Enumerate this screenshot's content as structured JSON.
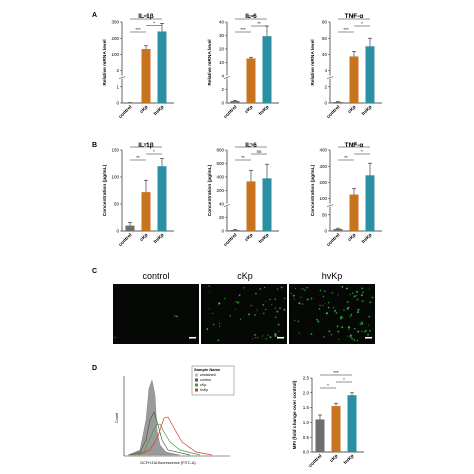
{
  "panel_letters": {
    "a": "A",
    "b": "B",
    "c": "C",
    "d": "D"
  },
  "colors": {
    "control": "#6e6e6e",
    "ckp": "#c8731f",
    "hvkp": "#2a8fa3",
    "axis": "#222222",
    "micro_bg": "#050805",
    "micro_dot": "#3ec23e"
  },
  "panel_c": {
    "labels": [
      "control",
      "cKp",
      "hvKp"
    ]
  },
  "panel_d_flow": {
    "legend_title": "Sample Name",
    "legend_items": [
      {
        "label": "unstained",
        "color": "#bbbbbb"
      },
      {
        "label": "control",
        "color": "#555555"
      },
      {
        "label": "cKp",
        "color": "#3aa13a"
      },
      {
        "label": "hvKp",
        "color": "#d43a3a"
      }
    ],
    "xlabel": "DCFH-DA fluorescence (FITC-A)",
    "ylabel": "Count"
  },
  "chart_data": [
    {
      "type": "bar",
      "title": "IL-1β",
      "ylabel": "Relative mRNA level",
      "categories": [
        "control",
        "cKp",
        "hvKp"
      ],
      "values": [
        1,
        200,
        265
      ],
      "errors": [
        0.3,
        12,
        30
      ],
      "broken_axis": true,
      "yticks": [
        "0",
        "1",
        "2",
        "100",
        "200",
        "300"
      ],
      "significance": [
        "***",
        "***",
        "*"
      ]
    },
    {
      "type": "bar",
      "title": "IL-6",
      "ylabel": "Relative mRNA level",
      "categories": [
        "control",
        "cKp",
        "hvKp"
      ],
      "values": [
        1,
        22,
        33
      ],
      "errors": [
        0.3,
        0.6,
        5
      ],
      "broken_axis": true,
      "yticks": [
        "0",
        "2",
        "4",
        "10",
        "20",
        "30",
        "40"
      ],
      "significance": [
        "***",
        "***",
        "**"
      ]
    },
    {
      "type": "bar",
      "title": "TNF-α",
      "ylabel": "Relative mRNA level",
      "categories": [
        "control",
        "cKp",
        "hvKp"
      ],
      "values": [
        1,
        46,
        56
      ],
      "errors": [
        0.3,
        5,
        8
      ],
      "broken_axis": true,
      "yticks": [
        "0",
        "2",
        "4",
        "40",
        "60",
        "80"
      ],
      "significance": [
        "***",
        "***",
        "*"
      ]
    },
    {
      "type": "bar",
      "title": "IL-1β",
      "ylabel": "Concentration (pg/mL)",
      "categories": [
        "control",
        "cKp",
        "hvKp"
      ],
      "values": [
        10,
        72,
        120
      ],
      "errors": [
        6,
        22,
        14
      ],
      "broken_axis": false,
      "yticks": [
        "0",
        "50",
        "100",
        "150"
      ],
      "significance": [
        "***",
        "**",
        "*"
      ]
    },
    {
      "type": "bar",
      "title": "IL-6",
      "ylabel": "Concentration (pg/mL)",
      "categories": [
        "control",
        "cKp",
        "hvKp"
      ],
      "values": [
        10,
        490,
        520
      ],
      "errors": [
        4,
        110,
        140
      ],
      "broken_axis": true,
      "yticks": [
        "0",
        "20",
        "40",
        "200",
        "400",
        "600",
        "800"
      ],
      "significance": [
        "**",
        "**",
        "ns"
      ]
    },
    {
      "type": "bar",
      "title": "TNF-α",
      "ylabel": "Concentration (pg/mL)",
      "categories": [
        "control",
        "cKp",
        "hvKp"
      ],
      "values": [
        10,
        180,
        275
      ],
      "errors": [
        4,
        30,
        60
      ],
      "broken_axis": true,
      "yticks": [
        "0",
        "50",
        "100",
        "200",
        "300",
        "400"
      ],
      "significance": [
        "***",
        "**",
        "*"
      ]
    },
    {
      "type": "bar",
      "title": "",
      "ylabel": "MFI (fold change over control)",
      "categories": [
        "control",
        "cKp",
        "hvKp"
      ],
      "values": [
        1.1,
        1.55,
        1.92
      ],
      "errors": [
        0.15,
        0.1,
        0.08
      ],
      "broken_axis": false,
      "yticks": [
        "0.0",
        "0.5",
        "1.0",
        "1.5",
        "2.0",
        "2.5"
      ],
      "significance": [
        "***",
        "*",
        "*"
      ]
    }
  ]
}
